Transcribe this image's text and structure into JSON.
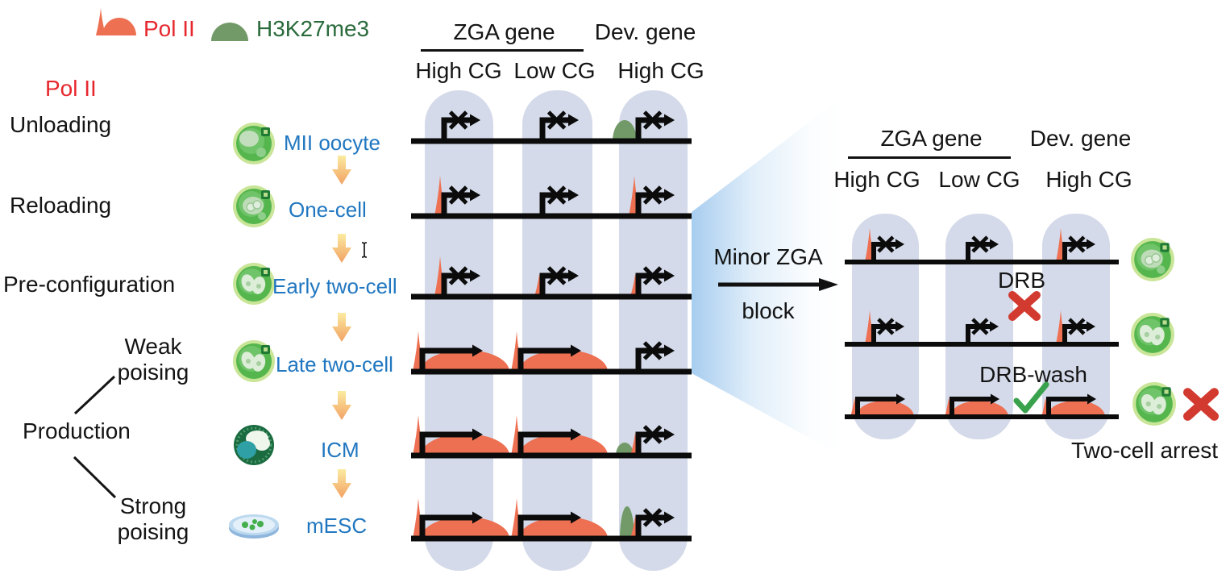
{
  "figure": {
    "legend": {
      "pol2_label": "Pol II",
      "h3k27me3_label": "H3K27me3"
    },
    "pathway_labels": {
      "pol2": "Pol II",
      "unloading": "Unloading",
      "reloading": "Reloading",
      "preconfiguration": "Pre-configuration",
      "weak_poising": "Weak poising",
      "production": "Production",
      "strong_poising": "Strong poising"
    },
    "stages": [
      {
        "label": "MII oocyte",
        "icon": "mii-oocyte-icon"
      },
      {
        "label": "One-cell",
        "icon": "one-cell-icon"
      },
      {
        "label": "Early two-cell",
        "icon": "early-two-cell-icon"
      },
      {
        "label": "Late two-cell",
        "icon": "late-two-cell-icon"
      },
      {
        "label": "ICM",
        "icon": "icm-icon"
      },
      {
        "label": "mESC",
        "icon": "mesc-dish-icon"
      }
    ],
    "main_panel": {
      "group_headers": [
        "ZGA gene",
        "Dev. gene"
      ],
      "column_headers": [
        "High CG",
        "Low CG",
        "High CG"
      ],
      "rows": [
        {
          "stage": "MII oocyte",
          "cells": [
            [
              "blocked-promoter"
            ],
            [
              "blocked-promoter"
            ],
            [
              "h3k27me3-dome",
              "blocked-promoter"
            ]
          ]
        },
        {
          "stage": "One-cell",
          "cells": [
            [
              "pol2-spike",
              "blocked-promoter"
            ],
            [
              "blocked-promoter"
            ],
            [
              "pol2-spike",
              "blocked-promoter"
            ]
          ]
        },
        {
          "stage": "Early two-cell",
          "cells": [
            [
              "pol2-spike",
              "blocked-promoter"
            ],
            [
              "pol2-spike-small",
              "blocked-promoter"
            ],
            [
              "pol2-spike-small",
              "blocked-promoter"
            ]
          ]
        },
        {
          "stage": "Late two-cell",
          "cells": [
            [
              "pol2-spike",
              "active-promoter",
              "pol2-body"
            ],
            [
              "pol2-spike",
              "active-promoter",
              "pol2-body"
            ],
            [
              "blocked-promoter"
            ]
          ]
        },
        {
          "stage": "ICM",
          "cells": [
            [
              "pol2-spike",
              "active-promoter",
              "pol2-body"
            ],
            [
              "pol2-spike",
              "active-promoter",
              "pol2-body"
            ],
            [
              "h3k27me3-dome-small",
              "pol2-spike-small",
              "blocked-promoter"
            ]
          ]
        },
        {
          "stage": "mESC",
          "cells": [
            [
              "pol2-spike",
              "active-promoter",
              "pol2-body"
            ],
            [
              "pol2-spike",
              "active-promoter",
              "pol2-body"
            ],
            [
              "h3k27me3-tall",
              "pol2-spike-small",
              "blocked-promoter"
            ]
          ]
        }
      ]
    },
    "transition": {
      "label_line1": "Minor ZGA",
      "label_line2": "block"
    },
    "right_panel": {
      "group_headers": [
        "ZGA gene",
        "Dev. gene"
      ],
      "column_headers": [
        "High CG",
        "Low CG",
        "High CG"
      ],
      "rows": [
        {
          "cells": [
            [
              "pol2-spike",
              "blocked-promoter"
            ],
            [
              "blocked-promoter"
            ],
            [
              "pol2-spike",
              "blocked-promoter"
            ]
          ],
          "stage_icon": "one-cell-icon"
        },
        {
          "cells": [
            [
              "pol2-spike",
              "blocked-promoter"
            ],
            [
              "blocked-promoter"
            ],
            [
              "pol2-spike",
              "blocked-promoter"
            ]
          ],
          "stage_icon": "early-two-cell-icon"
        },
        {
          "cells": [
            [
              "pol2-spike-small",
              "active-promoter",
              "pol2-body-small"
            ],
            [
              "pol2-spike-small",
              "active-promoter",
              "pol2-body-small"
            ],
            [
              "pol2-spike-small",
              "active-promoter",
              "pol2-body-small"
            ]
          ],
          "stage_icon": "late-two-cell-icon",
          "mark": "red-cross"
        }
      ],
      "drb_label": "DRB",
      "drb_wash_label": "DRB-wash",
      "arrest_label": "Two-cell arrest"
    },
    "colors": {
      "pol2_orange": "#EE7052",
      "h3k27me3_green": "#729A68",
      "pol2_text_red": "#E6282E",
      "h3k27me3_text_green": "#2A6B3C",
      "stage_text_blue": "#2077C0",
      "column_fill": "#D4DAE9",
      "cross_red": "#D23A30",
      "check_green": "#3AA14C"
    }
  }
}
